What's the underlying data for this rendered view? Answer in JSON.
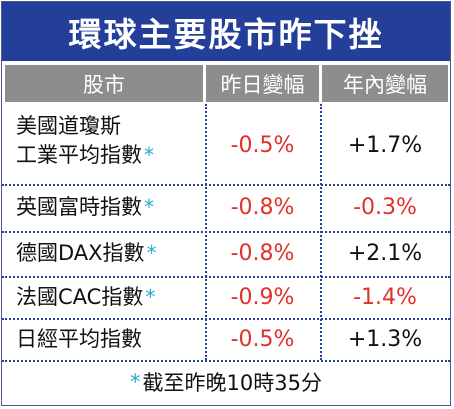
{
  "title": "環球主要股市昨下挫",
  "headers": {
    "market": "股市",
    "daily_change": "昨日變幅",
    "ytd_change": "年內變幅"
  },
  "rows": [
    {
      "name_line1": "美國道瓊斯",
      "name_line2": "工業平均指數",
      "star": "*",
      "daily": "-0.5%",
      "ytd": "+1.7%"
    },
    {
      "name_line1": "英國富時指數",
      "star": "*",
      "daily": "-0.8%",
      "ytd": "-0.3%"
    },
    {
      "name_line1": "德國DAX指數",
      "star": "*",
      "daily": "-0.8%",
      "ytd": "+2.1%"
    },
    {
      "name_line1": "法國CAC指數",
      "star": "*",
      "daily": "-0.9%",
      "ytd": "-1.4%"
    },
    {
      "name_line1": "日經平均指數",
      "star": "",
      "daily": "-0.5%",
      "ytd": "+1.3%"
    }
  ],
  "footnote": {
    "star": "*",
    "text": "截至昨晚10時35分"
  },
  "colors": {
    "title_bg": "#243f99",
    "header_bg": "#8d8d8d",
    "negative": "#e0312b",
    "positive": "#111111",
    "star": "#2aa7d6"
  }
}
